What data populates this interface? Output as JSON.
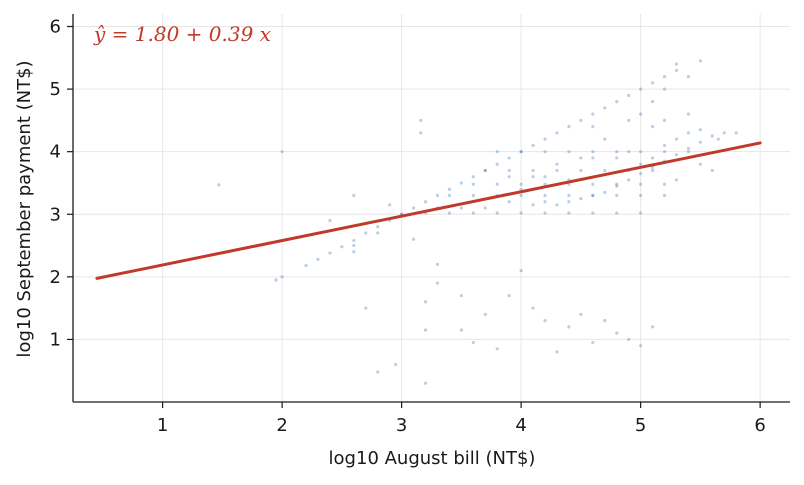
{
  "chart_data": {
    "type": "scatter",
    "xlabel": "log10 August bill (NT$)",
    "ylabel": "log10 September payment (NT$)",
    "xlim": [
      0.25,
      6.25
    ],
    "ylim": [
      0.0,
      6.2
    ],
    "x_ticks": [
      1,
      2,
      3,
      4,
      5,
      6
    ],
    "y_ticks": [
      1,
      2,
      3,
      4,
      5,
      6
    ],
    "grid": true,
    "annotation": "ŷ = 1.80 + 0.39 x",
    "fit_line": {
      "intercept": 1.8,
      "slope": 0.39,
      "x_range": [
        0.45,
        6.0
      ],
      "color": "#c0392b"
    },
    "point_color": "#3a75b0",
    "series": [
      {
        "points": [
          [
            2.2,
            2.18
          ],
          [
            2.3,
            2.28
          ],
          [
            2.4,
            2.38
          ],
          [
            2.5,
            2.48
          ],
          [
            2.6,
            2.58
          ],
          [
            2.7,
            2.7
          ],
          [
            2.8,
            2.8
          ],
          [
            2.9,
            2.9
          ],
          [
            3.0,
            3.0
          ],
          [
            3.1,
            3.1
          ],
          [
            3.2,
            3.2
          ],
          [
            3.3,
            3.3
          ],
          [
            3.4,
            3.4
          ],
          [
            3.5,
            3.5
          ],
          [
            3.6,
            3.6
          ],
          [
            3.7,
            3.7
          ],
          [
            3.8,
            3.8
          ],
          [
            3.9,
            3.9
          ],
          [
            4.0,
            4.0
          ],
          [
            4.1,
            4.1
          ],
          [
            4.2,
            4.2
          ],
          [
            4.3,
            4.3
          ],
          [
            4.4,
            4.4
          ],
          [
            4.5,
            4.5
          ],
          [
            4.6,
            4.6
          ],
          [
            4.7,
            4.7
          ],
          [
            4.8,
            4.8
          ],
          [
            4.9,
            4.9
          ],
          [
            5.0,
            5.0
          ],
          [
            5.1,
            5.1
          ],
          [
            5.2,
            5.2
          ],
          [
            5.3,
            5.3
          ],
          [
            3.0,
            3.0
          ],
          [
            3.2,
            3.02
          ],
          [
            3.4,
            3.02
          ],
          [
            3.6,
            3.02
          ],
          [
            3.8,
            3.02
          ],
          [
            4.0,
            3.02
          ],
          [
            4.2,
            3.02
          ],
          [
            4.4,
            3.02
          ],
          [
            4.6,
            3.02
          ],
          [
            4.8,
            3.02
          ],
          [
            5.0,
            3.02
          ],
          [
            3.4,
            3.3
          ],
          [
            3.6,
            3.3
          ],
          [
            3.8,
            3.3
          ],
          [
            4.0,
            3.3
          ],
          [
            4.2,
            3.3
          ],
          [
            4.4,
            3.3
          ],
          [
            4.6,
            3.3
          ],
          [
            4.8,
            3.3
          ],
          [
            5.0,
            3.3
          ],
          [
            3.6,
            3.48
          ],
          [
            3.8,
            3.48
          ],
          [
            4.0,
            3.48
          ],
          [
            4.2,
            3.48
          ],
          [
            4.4,
            3.48
          ],
          [
            4.6,
            3.48
          ],
          [
            4.8,
            3.48
          ],
          [
            5.0,
            3.48
          ],
          [
            5.2,
            3.48
          ],
          [
            3.7,
            3.7
          ],
          [
            3.9,
            3.7
          ],
          [
            4.1,
            3.7
          ],
          [
            4.3,
            3.7
          ],
          [
            4.5,
            3.7
          ],
          [
            4.7,
            3.7
          ],
          [
            4.9,
            3.7
          ],
          [
            5.1,
            3.7
          ],
          [
            3.8,
            4.0
          ],
          [
            4.0,
            4.0
          ],
          [
            4.2,
            4.0
          ],
          [
            4.4,
            4.0
          ],
          [
            4.6,
            4.0
          ],
          [
            4.8,
            4.0
          ],
          [
            5.0,
            4.0
          ],
          [
            5.2,
            4.0
          ],
          [
            5.4,
            4.0
          ],
          [
            4.1,
            3.15
          ],
          [
            4.2,
            3.2
          ],
          [
            4.3,
            3.15
          ],
          [
            4.4,
            3.2
          ],
          [
            4.5,
            3.25
          ],
          [
            4.6,
            3.3
          ],
          [
            4.7,
            3.35
          ],
          [
            4.8,
            3.45
          ],
          [
            4.9,
            3.55
          ],
          [
            5.0,
            3.65
          ],
          [
            5.1,
            3.75
          ],
          [
            5.2,
            3.85
          ],
          [
            5.3,
            3.95
          ],
          [
            5.4,
            4.05
          ],
          [
            5.5,
            4.15
          ],
          [
            5.6,
            4.25
          ],
          [
            5.7,
            4.3
          ],
          [
            4.8,
            3.9
          ],
          [
            4.9,
            4.0
          ],
          [
            5.0,
            3.8
          ],
          [
            5.1,
            3.9
          ],
          [
            5.2,
            4.1
          ],
          [
            5.3,
            4.2
          ],
          [
            5.4,
            4.3
          ],
          [
            5.5,
            4.35
          ],
          [
            5.0,
            4.6
          ],
          [
            5.1,
            4.8
          ],
          [
            5.2,
            5.0
          ],
          [
            5.3,
            5.4
          ],
          [
            5.4,
            5.2
          ],
          [
            5.5,
            5.45
          ],
          [
            5.2,
            4.5
          ],
          [
            5.4,
            4.6
          ],
          [
            5.1,
            4.4
          ],
          [
            4.9,
            4.5
          ],
          [
            4.6,
            4.4
          ],
          [
            4.7,
            4.2
          ],
          [
            4.5,
            3.9
          ],
          [
            4.3,
            3.8
          ],
          [
            4.1,
            3.6
          ],
          [
            4.0,
            3.4
          ],
          [
            3.9,
            3.2
          ],
          [
            3.7,
            3.1
          ],
          [
            3.5,
            3.1
          ],
          [
            3.3,
            3.1
          ],
          [
            3.16,
            4.3
          ],
          [
            3.16,
            4.5
          ],
          [
            2.0,
            4.0
          ],
          [
            1.47,
            3.47
          ],
          [
            1.95,
            1.95
          ],
          [
            2.8,
            2.7
          ],
          [
            3.1,
            2.6
          ],
          [
            3.3,
            2.2
          ],
          [
            3.3,
            1.9
          ],
          [
            3.5,
            1.7
          ],
          [
            3.7,
            1.4
          ],
          [
            3.2,
            1.15
          ],
          [
            3.5,
            1.15
          ],
          [
            3.6,
            0.95
          ],
          [
            3.8,
            0.85
          ],
          [
            3.9,
            1.7
          ],
          [
            4.1,
            1.5
          ],
          [
            4.2,
            1.3
          ],
          [
            4.4,
            1.2
          ],
          [
            4.5,
            1.4
          ],
          [
            4.7,
            1.3
          ],
          [
            4.8,
            1.1
          ],
          [
            4.9,
            1.0
          ],
          [
            5.0,
            0.9
          ],
          [
            5.1,
            1.2
          ],
          [
            4.6,
            0.95
          ],
          [
            4.3,
            0.8
          ],
          [
            2.8,
            0.48
          ],
          [
            2.95,
            0.6
          ],
          [
            3.2,
            0.3
          ],
          [
            2.6,
            3.3
          ],
          [
            2.9,
            3.15
          ],
          [
            2.0,
            2.0
          ],
          [
            2.4,
            2.9
          ],
          [
            2.6,
            2.4
          ],
          [
            2.7,
            1.5
          ],
          [
            2.6,
            2.5
          ],
          [
            3.2,
            1.6
          ],
          [
            4.0,
            2.1
          ],
          [
            4.2,
            3.6
          ],
          [
            4.6,
            3.9
          ],
          [
            4.4,
            3.55
          ],
          [
            3.9,
            3.6
          ],
          [
            5.2,
            3.3
          ],
          [
            5.3,
            3.55
          ],
          [
            5.5,
            3.8
          ],
          [
            5.6,
            3.7
          ],
          [
            5.8,
            4.3
          ],
          [
            5.65,
            4.2
          ]
        ]
      }
    ]
  }
}
